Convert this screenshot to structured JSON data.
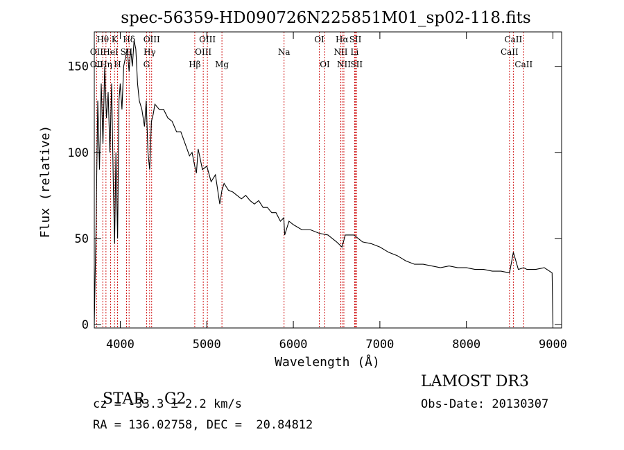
{
  "chart_data": {
    "type": "line",
    "title": "spec-56359-HD090726N225851M01_sp02-118.fits",
    "xlabel": "Wavelength (Å)",
    "ylabel": "Flux (relative)",
    "xlim": [
      3700,
      9100
    ],
    "ylim": [
      -2,
      170
    ],
    "xticks": [
      4000,
      5000,
      6000,
      7000,
      8000,
      9000
    ],
    "yticks": [
      0,
      50,
      100,
      150
    ],
    "grid": false,
    "series": [
      {
        "name": "spectrum",
        "x": [
          3700,
          3720,
          3740,
          3760,
          3780,
          3800,
          3820,
          3840,
          3860,
          3880,
          3900,
          3920,
          3935,
          3950,
          3969,
          3985,
          4000,
          4020,
          4040,
          4060,
          4080,
          4102,
          4120,
          4140,
          4160,
          4180,
          4200,
          4220,
          4250,
          4280,
          4300,
          4320,
          4340,
          4360,
          4380,
          4400,
          4450,
          4500,
          4550,
          4600,
          4650,
          4700,
          4750,
          4800,
          4830,
          4861,
          4880,
          4900,
          4950,
          5000,
          5050,
          5100,
          5150,
          5175,
          5200,
          5250,
          5300,
          5350,
          5400,
          5450,
          5500,
          5550,
          5600,
          5650,
          5700,
          5750,
          5800,
          5850,
          5890,
          5900,
          5950,
          6000,
          6100,
          6200,
          6300,
          6400,
          6500,
          6563,
          6600,
          6700,
          6800,
          6900,
          7000,
          7100,
          7200,
          7300,
          7400,
          7500,
          7600,
          7700,
          7800,
          7900,
          8000,
          8100,
          8200,
          8300,
          8400,
          8498,
          8542,
          8600,
          8662,
          8700,
          8800,
          8900,
          8990,
          9000
        ],
        "values": [
          0,
          56,
          130,
          90,
          140,
          105,
          150,
          120,
          135,
          100,
          140,
          80,
          47,
          100,
          50,
          130,
          140,
          125,
          150,
          155,
          160,
          147,
          160,
          150,
          165,
          160,
          140,
          130,
          125,
          115,
          130,
          100,
          90,
          118,
          122,
          128,
          125,
          125,
          120,
          118,
          112,
          112,
          105,
          98,
          100,
          92,
          88,
          102,
          90,
          92,
          83,
          87,
          70,
          78,
          82,
          78,
          77,
          75,
          73,
          75,
          72,
          70,
          72,
          68,
          68,
          65,
          65,
          60,
          62,
          52,
          60,
          58,
          55,
          55,
          53,
          52,
          48,
          45,
          52,
          52,
          48,
          47,
          45,
          42,
          40,
          37,
          35,
          35,
          34,
          33,
          34,
          33,
          33,
          32,
          32,
          31,
          31,
          30,
          42,
          32,
          33,
          32,
          32,
          33,
          30,
          0
        ]
      }
    ],
    "line_labels": [
      {
        "label": "Hθ",
        "wl": 3798,
        "row": 0
      },
      {
        "label": "OII",
        "wl": 3727,
        "row": 1
      },
      {
        "label": "OII",
        "wl": 3727,
        "row": 2
      },
      {
        "label": "K",
        "wl": 3934,
        "row": 0
      },
      {
        "label": "HeI",
        "wl": 3889,
        "row": 1
      },
      {
        "label": "Hη",
        "wl": 3835,
        "row": 2
      },
      {
        "label": "Hδ",
        "wl": 4102,
        "row": 0
      },
      {
        "label": "SII",
        "wl": 4072,
        "row": 1
      },
      {
        "label": "H",
        "wl": 3969,
        "row": 2
      },
      {
        "label": "OIII",
        "wl": 4363,
        "row": 0
      },
      {
        "label": "Hγ",
        "wl": 4340,
        "row": 1
      },
      {
        "label": "G",
        "wl": 4304,
        "row": 2
      },
      {
        "label": "OIII",
        "wl": 5007,
        "row": 0
      },
      {
        "label": "OIII",
        "wl": 4959,
        "row": 1
      },
      {
        "label": "Hβ",
        "wl": 4861,
        "row": 2
      },
      {
        "label": "Mg",
        "wl": 5175,
        "row": 2
      },
      {
        "label": "Na",
        "wl": 5893,
        "row": 1
      },
      {
        "label": "OI",
        "wl": 6300,
        "row": 0
      },
      {
        "label": "OI",
        "wl": 6364,
        "row": 2
      },
      {
        "label": "Hα",
        "wl": 6563,
        "row": 0
      },
      {
        "label": "SII",
        "wl": 6717,
        "row": 0
      },
      {
        "label": "NII",
        "wl": 6548,
        "row": 1
      },
      {
        "label": "Li",
        "wl": 6708,
        "row": 1
      },
      {
        "label": "NII",
        "wl": 6584,
        "row": 2
      },
      {
        "label": "SII",
        "wl": 6731,
        "row": 2
      },
      {
        "label": "CaII",
        "wl": 8542,
        "row": 0
      },
      {
        "label": "CaII",
        "wl": 8498,
        "row": 1
      },
      {
        "label": "CaII",
        "wl": 8662,
        "row": 2
      }
    ],
    "line_marks": [
      3727,
      3798,
      3835,
      3889,
      3934,
      3969,
      4072,
      4102,
      4304,
      4340,
      4363,
      4861,
      4959,
      5007,
      5175,
      5893,
      6300,
      6364,
      6548,
      6563,
      6584,
      6708,
      6717,
      6731,
      8498,
      8542,
      8662
    ]
  },
  "info": {
    "object_class": "STAR",
    "subclass": "G2",
    "survey": "LAMOST DR3",
    "cz": "cz = -33.3 ± 2.2 km/s",
    "obs_date": "Obs-Date: 20130307",
    "coords": "RA = 136.02758, DEC =  20.84812"
  },
  "colors": {
    "spectrum": "#000000",
    "line_marks": "#cc0000",
    "axes": "#000000"
  }
}
